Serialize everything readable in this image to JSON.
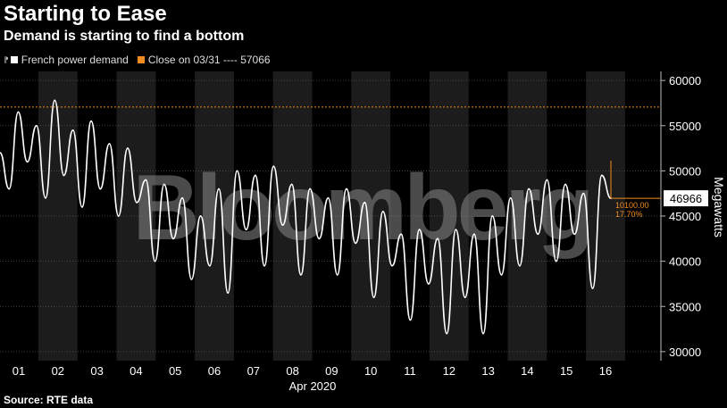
{
  "header": {
    "title": "Starting to Ease",
    "subtitle": "Demand is starting to find a bottom"
  },
  "legend": {
    "items": [
      {
        "label": "French power demand",
        "color": "#ffffff"
      },
      {
        "label": "Close on 03/31 ---- 57066",
        "color": "#f28c1e"
      }
    ]
  },
  "footer": {
    "source": "Source: RTE data"
  },
  "watermark": "Bloomberg",
  "chart_data": {
    "type": "line",
    "title": "Starting to Ease",
    "subtitle": "Demand is starting to find a bottom",
    "xlabel": "Apr 2020",
    "ylabel": "Megawatts",
    "ylim": [
      29000,
      61000
    ],
    "y_ticks": [
      30000,
      35000,
      40000,
      45000,
      50000,
      55000,
      60000
    ],
    "x_tick_labels": [
      "01",
      "02",
      "03",
      "04",
      "05",
      "06",
      "07",
      "08",
      "09",
      "10",
      "11",
      "12",
      "13",
      "14",
      "15",
      "16"
    ],
    "grid": true,
    "legend_position": "top-left",
    "reference_line": {
      "label": "Close on 03/31",
      "value": 57066,
      "color": "#f28c1e"
    },
    "last_value": {
      "value": 46966,
      "change": "10100.00",
      "change_pct": "17.70%"
    },
    "series": [
      {
        "name": "French power demand",
        "color": "#ffffff",
        "x": [
          "03/31",
          "03/31",
          "03/31",
          "03/31",
          "04/01",
          "04/01",
          "04/01",
          "04/01",
          "04/02",
          "04/02",
          "04/02",
          "04/02",
          "04/03",
          "04/03",
          "04/03",
          "04/03",
          "04/04",
          "04/04",
          "04/04",
          "04/04",
          "04/05",
          "04/05",
          "04/05",
          "04/05",
          "04/06",
          "04/06",
          "04/06",
          "04/06",
          "04/07",
          "04/07",
          "04/07",
          "04/07",
          "04/08",
          "04/08",
          "04/08",
          "04/08",
          "04/09",
          "04/09",
          "04/09",
          "04/09",
          "04/10",
          "04/10",
          "04/10",
          "04/10",
          "04/11",
          "04/11",
          "04/11",
          "04/11",
          "04/12",
          "04/12",
          "04/12",
          "04/12",
          "04/13",
          "04/13",
          "04/13",
          "04/13",
          "04/14",
          "04/14",
          "04/14",
          "04/14",
          "04/15",
          "04/15",
          "04/15",
          "04/15",
          "04/16",
          "04/16",
          "04/16",
          "04/16"
        ],
        "values": [
          52000,
          48000,
          56500,
          51000,
          55000,
          47000,
          57800,
          49500,
          54500,
          46000,
          55500,
          48000,
          53000,
          45000,
          52500,
          46500,
          49000,
          40000,
          48500,
          42500,
          47000,
          38000,
          45000,
          39500,
          48000,
          36500,
          50000,
          43500,
          49500,
          39500,
          50500,
          44000,
          48500,
          38500,
          48000,
          42500,
          47000,
          38500,
          48000,
          42000,
          46500,
          36000,
          45500,
          39500,
          43000,
          33500,
          43500,
          37500,
          42500,
          32000,
          43500,
          36000,
          43000,
          32000,
          45000,
          38500,
          47000,
          39500,
          48000,
          43000,
          49000,
          40000,
          48500,
          43000,
          47500,
          37000,
          49500,
          46966
        ]
      }
    ]
  }
}
